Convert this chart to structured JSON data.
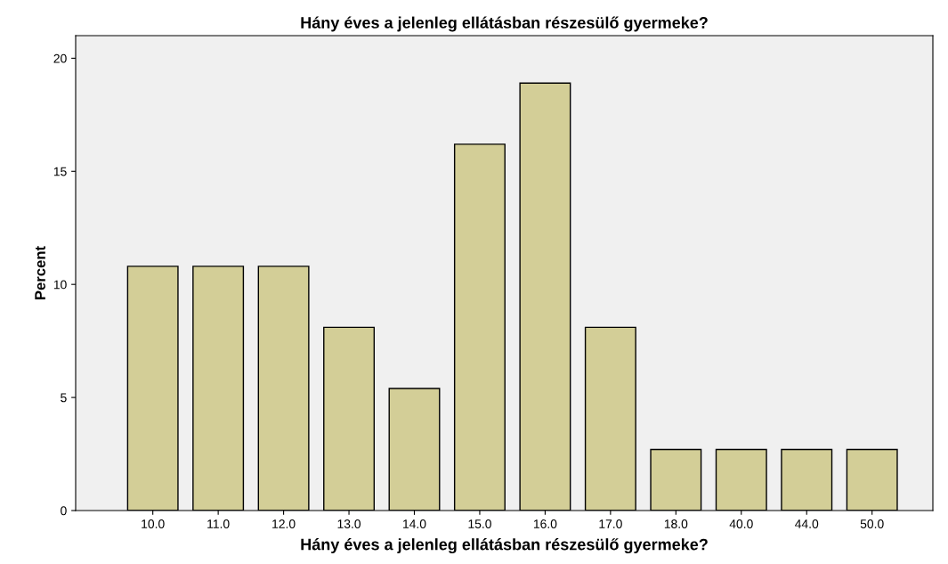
{
  "chart_data": {
    "type": "bar",
    "title": "Hány éves a jelenleg ellátásban részesülő gyermeke?",
    "xlabel": "Hány éves a jelenleg ellátásban részesülő gyermeke?",
    "ylabel": "Percent",
    "categories": [
      "10.0",
      "11.0",
      "12.0",
      "13.0",
      "14.0",
      "15.0",
      "16.0",
      "17.0",
      "18.0",
      "40.0",
      "44.0",
      "50.0"
    ],
    "values": [
      10.8,
      10.8,
      10.8,
      8.1,
      5.4,
      16.2,
      18.9,
      8.1,
      2.7,
      2.7,
      2.7,
      2.7
    ],
    "color": "#d3ce97",
    "ylim": [
      0,
      21
    ],
    "yticks": [
      0,
      5,
      10,
      15,
      20
    ],
    "grid": false
  }
}
